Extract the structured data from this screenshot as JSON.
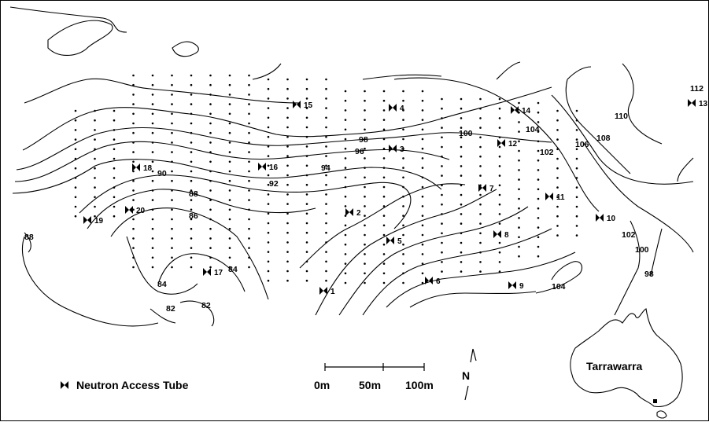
{
  "legend": {
    "symbol_label": "Neutron Access Tube"
  },
  "scale_bar": {
    "labels": [
      "0m",
      "50m",
      "100m"
    ]
  },
  "north_arrow": {
    "label": "N"
  },
  "inset": {
    "label": "Tarrawarra"
  },
  "contour_labels": [
    "112",
    "110",
    "108",
    "106",
    "104",
    "100",
    "102",
    "98",
    "96",
    "94",
    "92",
    "90",
    "88",
    "86",
    "84",
    "84",
    "82",
    "82",
    "88",
    "104",
    "102",
    "100",
    "98"
  ],
  "tubes": [
    {
      "id": "1"
    },
    {
      "id": "2"
    },
    {
      "id": "3"
    },
    {
      "id": "4"
    },
    {
      "id": "5"
    },
    {
      "id": "6"
    },
    {
      "id": "7"
    },
    {
      "id": "8"
    },
    {
      "id": "9"
    },
    {
      "id": "10"
    },
    {
      "id": "11"
    },
    {
      "id": "12"
    },
    {
      "id": "13"
    },
    {
      "id": "14"
    },
    {
      "id": "15"
    },
    {
      "id": "16"
    },
    {
      "id": "17"
    },
    {
      "id": "18"
    },
    {
      "id": "19"
    },
    {
      "id": "20"
    }
  ]
}
